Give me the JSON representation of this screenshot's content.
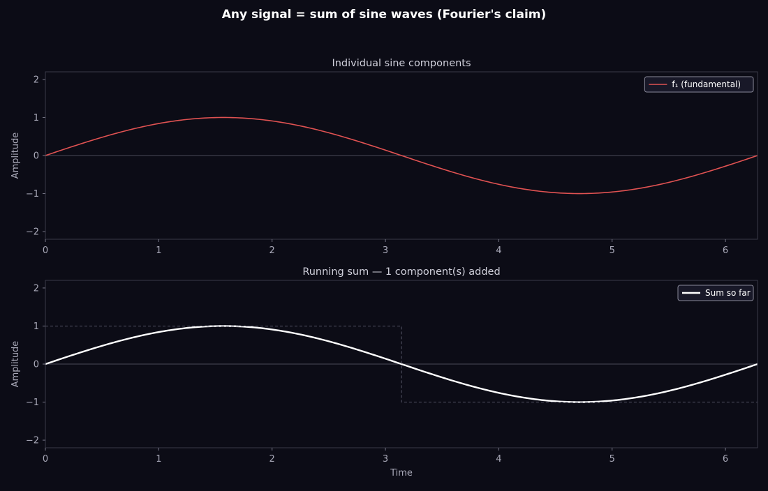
{
  "figure": {
    "title": "Any signal = sum of sine waves (Fourier's claim)",
    "background": "#0c0c16"
  },
  "chart_data": [
    {
      "type": "line",
      "title": "Individual sine components",
      "xlabel": "",
      "ylabel": "Amplitude",
      "xlim": [
        0,
        6.283
      ],
      "ylim": [
        -2.2,
        2.2
      ],
      "xticks": [
        0,
        1,
        2,
        3,
        4,
        5,
        6
      ],
      "xtick_labels": [
        "0",
        "1",
        "2",
        "3",
        "4",
        "5",
        "6"
      ],
      "yticks": [
        -2,
        -1,
        0,
        1,
        2
      ],
      "ytick_labels": [
        "−2",
        "−1",
        "0",
        "1",
        "2"
      ],
      "grid": false,
      "zero_line": true,
      "legend": "upper right",
      "series": [
        {
          "name": "f₁  (fundamental)",
          "color": "#e05252",
          "function": "sin(t)",
          "x": [
            0,
            0.5,
            1,
            1.571,
            2,
            2.5,
            3,
            3.142,
            3.5,
            4,
            4.5,
            4.712,
            5,
            5.5,
            6,
            6.283
          ],
          "y": [
            0,
            0.479,
            0.841,
            1.0,
            0.909,
            0.598,
            0.141,
            0,
            -0.351,
            -0.757,
            -0.978,
            -1.0,
            -0.959,
            -0.706,
            -0.279,
            0
          ]
        }
      ]
    },
    {
      "type": "line",
      "title": "Running sum — 1 component(s) added",
      "xlabel": "Time",
      "ylabel": "Amplitude",
      "xlim": [
        0,
        6.283
      ],
      "ylim": [
        -2.2,
        2.2
      ],
      "xticks": [
        0,
        1,
        2,
        3,
        4,
        5,
        6
      ],
      "xtick_labels": [
        "0",
        "1",
        "2",
        "3",
        "4",
        "5",
        "6"
      ],
      "yticks": [
        -2,
        -1,
        0,
        1,
        2
      ],
      "ytick_labels": [
        "−2",
        "−1",
        "0",
        "1",
        "2"
      ],
      "grid": false,
      "zero_line": true,
      "legend": "upper right",
      "series": [
        {
          "name": "Sum so far",
          "color": "#ffffff",
          "function": "sin(t)",
          "x": [
            0,
            0.5,
            1,
            1.571,
            2,
            2.5,
            3,
            3.142,
            3.5,
            4,
            4.5,
            4.712,
            5,
            5.5,
            6,
            6.283
          ],
          "y": [
            0,
            0.479,
            0.841,
            1.0,
            0.909,
            0.598,
            0.141,
            0,
            -0.351,
            -0.757,
            -0.978,
            -1.0,
            -0.959,
            -0.706,
            -0.279,
            0
          ]
        },
        {
          "color": "#555566",
          "dashed": true,
          "in_legend": false,
          "x": [
            0,
            3.142,
            3.142,
            6.283
          ],
          "y": [
            1,
            1,
            -1,
            -1
          ]
        }
      ]
    }
  ]
}
